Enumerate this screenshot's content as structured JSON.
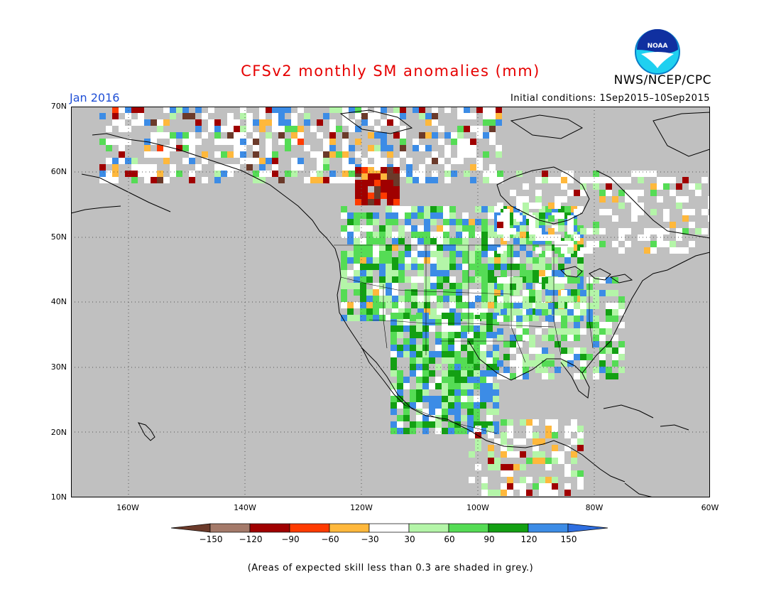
{
  "header": {
    "title": "CFSv2 monthly SM anomalies (mm)",
    "organization": "NWS/NCEP/CPC",
    "logo_text": "NOAA",
    "month": "Jan 2016",
    "initial_conditions": "Initial conditions: 1Sep2015–10Sep2015"
  },
  "map": {
    "background_color": "#c0c0c0",
    "lat_labels": [
      "70N",
      "60N",
      "50N",
      "40N",
      "30N",
      "20N",
      "10N"
    ],
    "lon_labels": [
      "160W",
      "140W",
      "120W",
      "100W",
      "80W",
      "60W"
    ]
  },
  "colorbar": {
    "labels": [
      "−150",
      "−120",
      "−90",
      "−60",
      "−30",
      "30",
      "60",
      "90",
      "120",
      "150"
    ],
    "colors": [
      "#6b3a2a",
      "#a47a6a",
      "#a00000",
      "#ff3b00",
      "#ffb83c",
      "#ffffff",
      "#b4f5a8",
      "#55dc55",
      "#13a013",
      "#3c8ce6",
      "#2e6ee0"
    ]
  },
  "footnote": "(Areas of expected skill less than 0.3 are shaded in grey.)"
}
